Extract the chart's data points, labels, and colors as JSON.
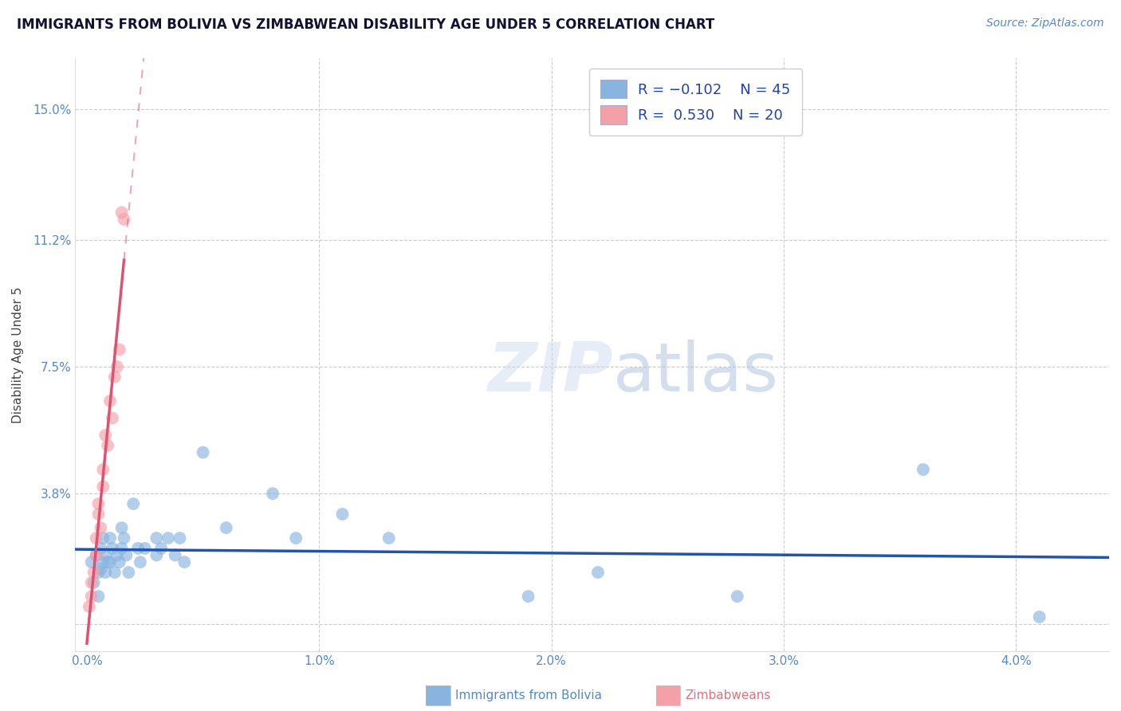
{
  "title": "IMMIGRANTS FROM BOLIVIA VS ZIMBABWEAN DISABILITY AGE UNDER 5 CORRELATION CHART",
  "source": "Source: ZipAtlas.com",
  "ylabel_label": "Disability Age Under 5",
  "x_ticks": [
    0.0,
    0.01,
    0.02,
    0.03,
    0.04
  ],
  "x_tick_labels": [
    "0.0%",
    "1.0%",
    "2.0%",
    "3.0%",
    "4.0%"
  ],
  "y_ticks": [
    0.0,
    0.038,
    0.075,
    0.112,
    0.15
  ],
  "y_tick_labels": [
    "",
    "3.8%",
    "7.5%",
    "11.2%",
    "15.0%"
  ],
  "xlim": [
    -0.0005,
    0.044
  ],
  "ylim": [
    -0.008,
    0.165
  ],
  "color_blue": "#8ab4e0",
  "color_pink": "#f4a0a8",
  "color_blue_line": "#2255aa",
  "color_pink_line": "#e05070",
  "bolivia_x": [
    0.0002,
    0.0003,
    0.0004,
    0.0005,
    0.0005,
    0.0006,
    0.0006,
    0.0007,
    0.0007,
    0.0008,
    0.0008,
    0.0009,
    0.001,
    0.001,
    0.0011,
    0.0012,
    0.0013,
    0.0014,
    0.0015,
    0.0015,
    0.0016,
    0.0017,
    0.0018,
    0.002,
    0.0022,
    0.0023,
    0.0025,
    0.003,
    0.003,
    0.0032,
    0.0035,
    0.0038,
    0.004,
    0.0042,
    0.005,
    0.006,
    0.008,
    0.009,
    0.011,
    0.013,
    0.019,
    0.022,
    0.028,
    0.036,
    0.041
  ],
  "bolivia_y": [
    0.018,
    0.012,
    0.02,
    0.015,
    0.008,
    0.022,
    0.016,
    0.025,
    0.018,
    0.02,
    0.015,
    0.018,
    0.025,
    0.018,
    0.022,
    0.015,
    0.02,
    0.018,
    0.022,
    0.028,
    0.025,
    0.02,
    0.015,
    0.035,
    0.022,
    0.018,
    0.022,
    0.025,
    0.02,
    0.022,
    0.025,
    0.02,
    0.025,
    0.018,
    0.05,
    0.028,
    0.038,
    0.025,
    0.032,
    0.025,
    0.008,
    0.015,
    0.008,
    0.045,
    0.002
  ],
  "zimbabwe_x": [
    0.0001,
    0.0002,
    0.0002,
    0.0003,
    0.0004,
    0.0004,
    0.0005,
    0.0005,
    0.0006,
    0.0007,
    0.0007,
    0.0008,
    0.0009,
    0.001,
    0.0011,
    0.0012,
    0.0013,
    0.0014,
    0.0015,
    0.0016
  ],
  "zimbabwe_y": [
    0.005,
    0.008,
    0.012,
    0.015,
    0.025,
    0.02,
    0.035,
    0.032,
    0.028,
    0.045,
    0.04,
    0.055,
    0.052,
    0.065,
    0.06,
    0.072,
    0.075,
    0.08,
    0.12,
    0.118
  ]
}
